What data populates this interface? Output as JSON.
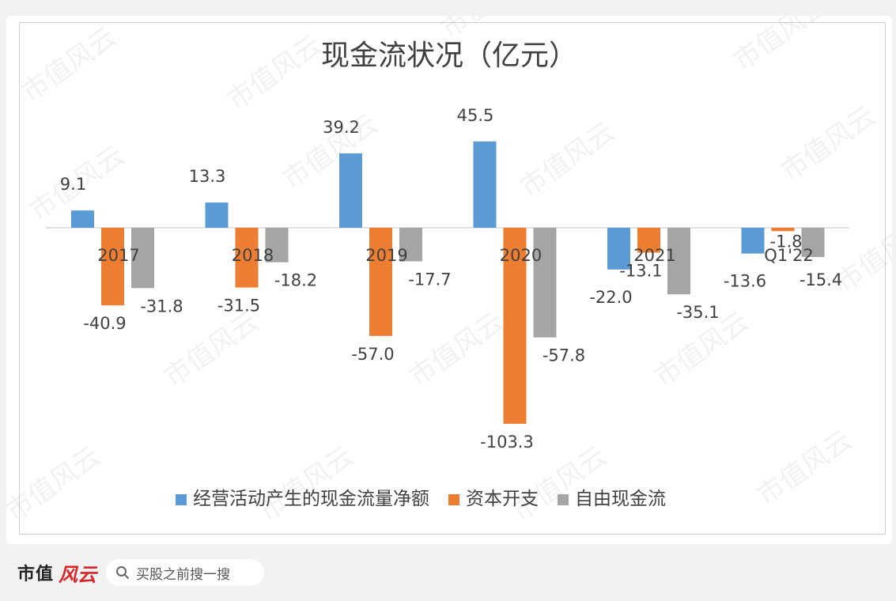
{
  "watermark_text": "市值风云",
  "footer": {
    "brand": "市值",
    "brand_script": "风云",
    "search_placeholder": "买股之前搜一搜",
    "search_icon": "search-icon"
  },
  "chart_data": {
    "type": "bar",
    "title": "现金流状况（亿元）",
    "categories": [
      "2017",
      "2018",
      "2019",
      "2020",
      "2021",
      "Q1'22"
    ],
    "series": [
      {
        "name": "经营活动产生的现金流量净额",
        "color": "#5b9bd5",
        "values": [
          9.1,
          13.3,
          39.2,
          45.5,
          -22.0,
          -13.6
        ]
      },
      {
        "name": "资本开支",
        "color": "#ed7d31",
        "values": [
          -40.9,
          -31.5,
          -57.0,
          -103.3,
          -13.1,
          -1.8
        ]
      },
      {
        "name": "自由现金流",
        "color": "#a5a5a5",
        "values": [
          -31.8,
          -18.2,
          -17.7,
          -57.8,
          -35.1,
          -15.4
        ]
      }
    ],
    "legend_position": "bottom",
    "grid": false
  }
}
